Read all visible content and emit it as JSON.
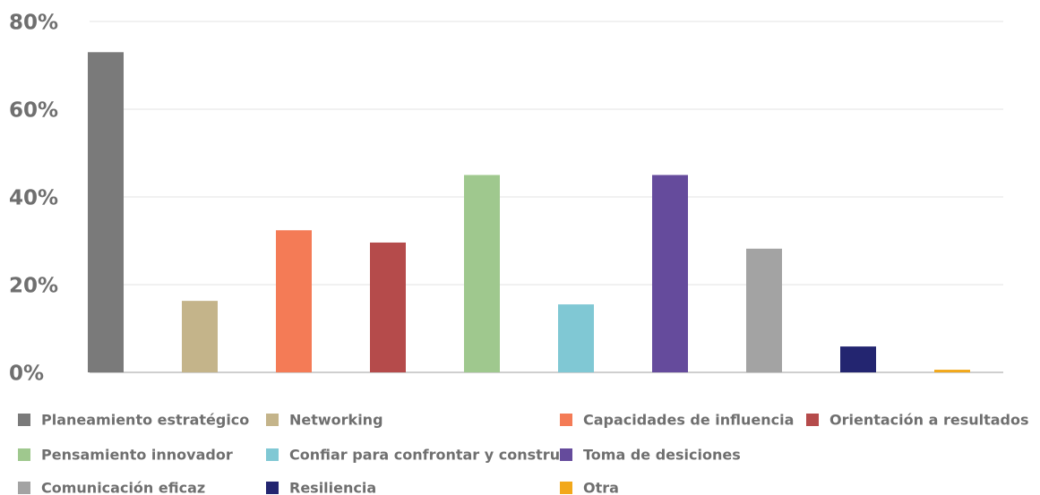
{
  "chart_data": {
    "type": "bar",
    "categories": [
      "Planeamiento estratégico",
      "Networking",
      "Capacidades de influencia",
      "Orientación a resultados",
      "Pensamiento innovador",
      "Confiar para confrontar y construir",
      "Toma de desiciones",
      "Comunicación eficaz",
      "Resiliencia",
      "Otra"
    ],
    "values": [
      73,
      16.3,
      32.4,
      29.6,
      45,
      15.5,
      45,
      28.2,
      5.9,
      0.6
    ],
    "colors": [
      "#7a7a7a",
      "#c4b48a",
      "#f47b56",
      "#b54b4b",
      "#9fc88e",
      "#80c8d4",
      "#654b9c",
      "#a3a3a3",
      "#232570",
      "#f2a81b"
    ],
    "ylim": [
      0,
      80
    ],
    "yticks": [
      {
        "value": 0,
        "label": "0%"
      },
      {
        "value": 20,
        "label": "20%"
      },
      {
        "value": 40,
        "label": "40%"
      },
      {
        "value": 60,
        "label": "60%"
      },
      {
        "value": 80,
        "label": "80%"
      }
    ],
    "grid": true
  }
}
